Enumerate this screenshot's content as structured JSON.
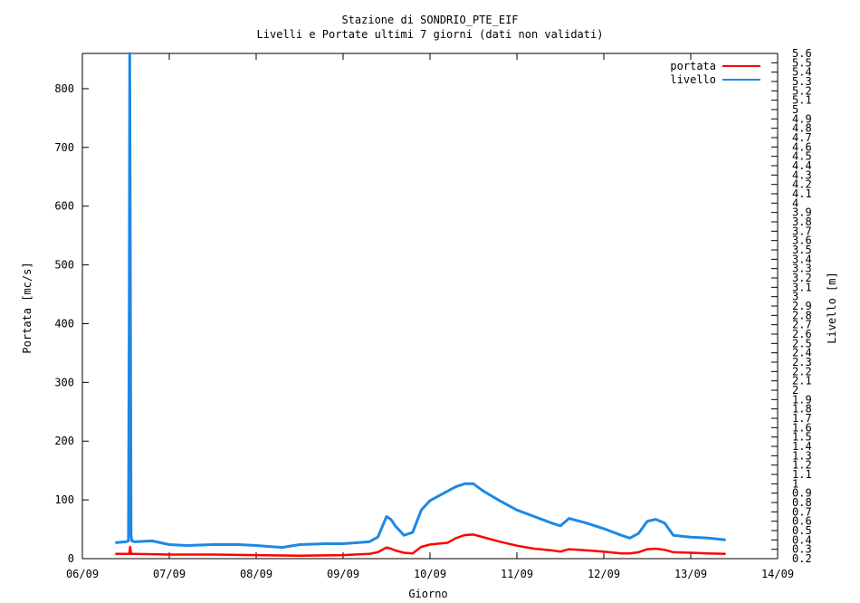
{
  "chart_data": {
    "type": "line",
    "title": "Stazione di SONDRIO_PTE_EIF",
    "subtitle": "Livelli e Portate ultimi 7 giorni (dati non validati)",
    "xlabel": "Giorno",
    "ylabel": "Portata [mc/s]",
    "y2label": "Livello [m]",
    "legend_position": "top-right",
    "grid": false,
    "x_categories": [
      "06/09",
      "07/09",
      "08/09",
      "09/09",
      "10/09",
      "11/09",
      "12/09",
      "13/09",
      "14/09"
    ],
    "xlim": [
      0,
      8
    ],
    "ylim": [
      0,
      860
    ],
    "y_ticks": [
      0,
      100,
      200,
      300,
      400,
      500,
      600,
      700,
      800
    ],
    "y2lim": [
      0.2,
      5.6
    ],
    "y2_ticks": [
      "0.2",
      "0.3",
      "0.4",
      "0.5",
      "0.6",
      "0.7",
      "0.8",
      "0.9",
      "1",
      "1.1",
      "1.2",
      "1.3",
      "1.4",
      "1.5",
      "1.6",
      "1.7",
      "1.8",
      "1.9",
      "2",
      "2.1",
      "2.2",
      "2.3",
      "2.4",
      "2.5",
      "2.6",
      "2.7",
      "2.8",
      "2.9",
      "3",
      "3.1",
      "3.2",
      "3.3",
      "3.4",
      "3.5",
      "3.6",
      "3.7",
      "3.8",
      "3.9",
      "4",
      "4.1",
      "4.2",
      "4.3",
      "4.4",
      "4.5",
      "4.6",
      "4.7",
      "4.8",
      "4.9",
      "5",
      "5.1",
      "5.2",
      "5.3",
      "5.4",
      "5.5",
      "5.6"
    ],
    "series": [
      {
        "name": "portata",
        "axis": "left",
        "color": "#ff0000",
        "x": [
          0.38,
          0.5,
          0.54,
          0.55,
          0.56,
          0.6,
          1.0,
          1.5,
          2.0,
          2.5,
          3.0,
          3.3,
          3.4,
          3.5,
          3.55,
          3.6,
          3.7,
          3.8,
          3.9,
          4.0,
          4.2,
          4.3,
          4.4,
          4.5,
          4.6,
          4.8,
          5.0,
          5.2,
          5.4,
          5.5,
          5.6,
          5.8,
          6.0,
          6.2,
          6.3,
          6.4,
          6.5,
          6.6,
          6.7,
          6.8,
          7.0,
          7.2,
          7.4
        ],
        "y": [
          8,
          8,
          8,
          20,
          8,
          8,
          7,
          7,
          6,
          5,
          6,
          8,
          11,
          19,
          17,
          14,
          10,
          9,
          20,
          24,
          27,
          35,
          40,
          41,
          37,
          29,
          22,
          17,
          14,
          12,
          16,
          14,
          12,
          9,
          9,
          11,
          16,
          17,
          15,
          11,
          10,
          9,
          8
        ]
      },
      {
        "name": "livello",
        "axis": "right",
        "color": "#1e88e5",
        "x": [
          0.38,
          0.5,
          0.53,
          0.54,
          0.545,
          0.55,
          0.56,
          0.57,
          0.6,
          0.8,
          1.0,
          1.2,
          1.5,
          1.8,
          2.0,
          2.3,
          2.5,
          2.8,
          3.0,
          3.3,
          3.4,
          3.5,
          3.55,
          3.6,
          3.7,
          3.8,
          3.9,
          4.0,
          4.2,
          4.3,
          4.4,
          4.5,
          4.6,
          4.8,
          5.0,
          5.2,
          5.4,
          5.5,
          5.6,
          5.8,
          6.0,
          6.2,
          6.3,
          6.4,
          6.5,
          6.6,
          6.7,
          6.8,
          7.0,
          7.2,
          7.4
        ],
        "y": [
          0.37,
          0.38,
          0.39,
          3.0,
          5.6,
          4.0,
          0.45,
          0.39,
          0.38,
          0.39,
          0.35,
          0.34,
          0.35,
          0.35,
          0.34,
          0.32,
          0.35,
          0.36,
          0.36,
          0.38,
          0.43,
          0.65,
          0.62,
          0.55,
          0.45,
          0.48,
          0.72,
          0.82,
          0.92,
          0.97,
          1.0,
          1.0,
          0.93,
          0.82,
          0.72,
          0.65,
          0.58,
          0.55,
          0.63,
          0.58,
          0.52,
          0.45,
          0.42,
          0.47,
          0.6,
          0.62,
          0.58,
          0.45,
          0.43,
          0.42,
          0.4
        ]
      }
    ]
  }
}
